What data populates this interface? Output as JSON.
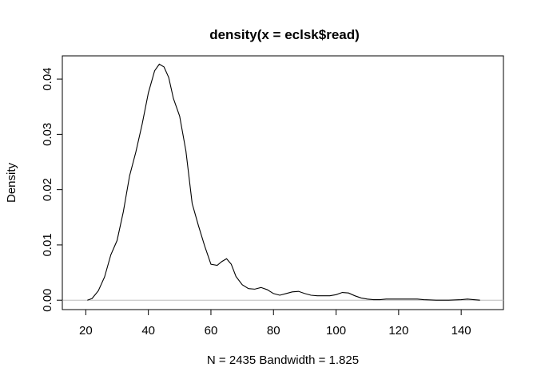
{
  "chart_data": {
    "type": "line",
    "title": "density(x = eclsk$read)",
    "xlabel": "N = 2435   Bandwidth = 1.825",
    "ylabel": "Density",
    "xlim": [
      12.5,
      153.5
    ],
    "ylim": [
      -0.0017,
      0.0442
    ],
    "x_ticks": [
      20,
      40,
      60,
      80,
      100,
      120,
      140
    ],
    "y_ticks": [
      0.0,
      0.01,
      0.02,
      0.03,
      0.04
    ],
    "x_tick_labels": [
      "20",
      "40",
      "60",
      "80",
      "100",
      "120",
      "140"
    ],
    "y_tick_labels": [
      "0.00",
      "0.01",
      "0.02",
      "0.03",
      "0.04"
    ],
    "grid": false,
    "baseline": {
      "y": 0,
      "color": "#bebebe"
    },
    "line_color": "#000000",
    "series": [
      {
        "x": [
          20.5,
          22,
          24,
          26,
          28,
          30,
          32,
          34,
          36,
          38,
          40,
          42,
          43.5,
          45,
          46.5,
          48,
          50,
          52,
          54,
          56,
          58,
          60,
          62,
          63.5,
          65,
          66.5,
          68,
          70,
          72,
          74,
          76,
          78,
          80,
          82,
          84,
          86,
          88,
          90,
          92,
          94,
          96,
          98,
          100,
          102,
          104,
          106,
          108,
          110,
          112,
          114,
          116,
          118,
          120,
          122,
          124,
          126,
          128,
          132,
          136,
          140,
          142,
          144,
          146
        ],
        "y": [
          0.0,
          0.0003,
          0.0017,
          0.0042,
          0.0082,
          0.0108,
          0.016,
          0.0225,
          0.0268,
          0.0318,
          0.0375,
          0.0415,
          0.0427,
          0.0422,
          0.0403,
          0.0365,
          0.0333,
          0.027,
          0.0175,
          0.0135,
          0.0098,
          0.0065,
          0.0063,
          0.007,
          0.0075,
          0.0065,
          0.0043,
          0.0028,
          0.0021,
          0.002,
          0.0023,
          0.0019,
          0.0012,
          0.0009,
          0.0012,
          0.0015,
          0.0016,
          0.0012,
          0.0009,
          0.0008,
          0.0008,
          0.0008,
          0.001,
          0.0014,
          0.0013,
          0.0008,
          0.0004,
          0.0002,
          0.0001,
          0.0001,
          0.0002,
          0.0002,
          0.0002,
          0.0002,
          0.0002,
          0.0002,
          0.0001,
          0.0,
          0.0,
          0.0001,
          0.0002,
          0.0001,
          0.0
        ]
      }
    ]
  }
}
